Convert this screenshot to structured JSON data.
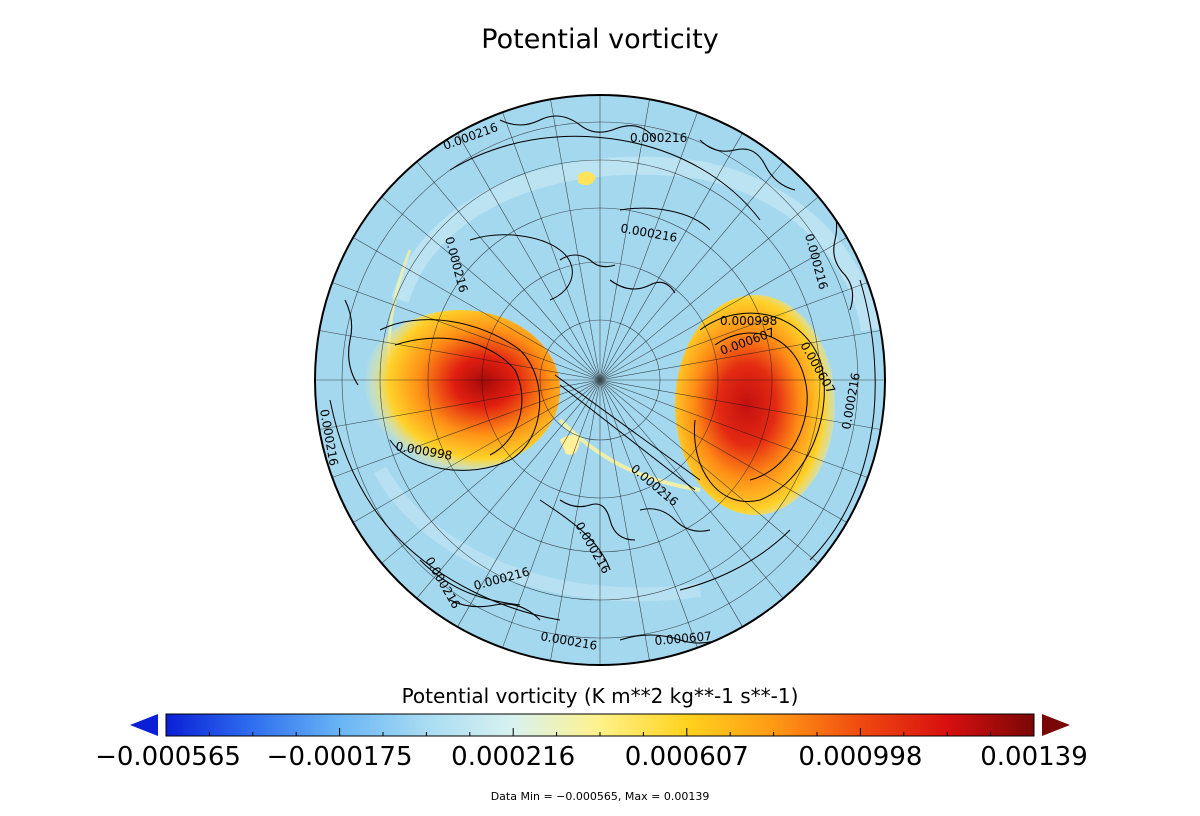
{
  "title": "Potential vorticity",
  "colorbar": {
    "title": "Potential vorticity (K m**2 kg**-1 s**-1)",
    "ticks": [
      "-0.000565",
      "-0.000175",
      "0.000216",
      "0.000607",
      "0.000998",
      "0.00139"
    ],
    "min": -0.000565,
    "max": 0.00139,
    "colors": [
      "#0a1fd6",
      "#2f6ff0",
      "#68b4f5",
      "#a8dcf2",
      "#d9f2f0",
      "#fff28a",
      "#ffd21e",
      "#ff9a14",
      "#f04a10",
      "#d80f0f",
      "#7a0707"
    ],
    "extend_low_color": "#0a1fd6",
    "extend_high_color": "#7a0707"
  },
  "footer": {
    "data_min_max": "Data Min = −0.000565, Max = 0.00139"
  },
  "map": {
    "projection": "orthographic-north-polar",
    "background_color": "#a4d8ef",
    "contour_labels": [
      "0.000216",
      "0.000216",
      "0.000216",
      "0.000216",
      "0.000216",
      "0.000216",
      "0.000216",
      "0.000216",
      "0.000216",
      "0.000216",
      "0.000216",
      "0.000216",
      "0.000607",
      "0.000998",
      "0.000607",
      "0.000607",
      "0.000998"
    ]
  }
}
